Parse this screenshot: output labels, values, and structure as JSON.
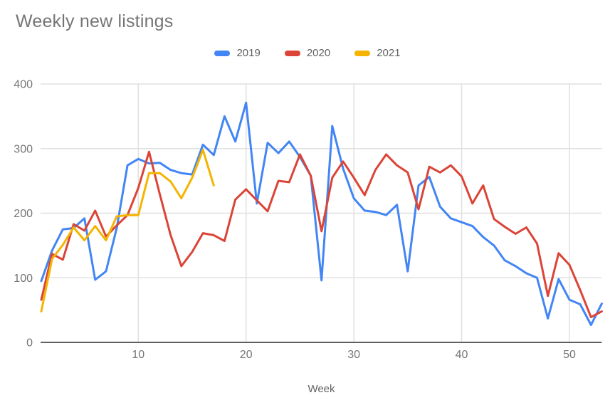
{
  "title": "Weekly new listings",
  "legend": {
    "items": [
      {
        "label": "2019",
        "color": "#4285F4"
      },
      {
        "label": "2020",
        "color": "#DB4437"
      },
      {
        "label": "2021",
        "color": "#F4B400"
      }
    ]
  },
  "axes": {
    "xlabel": "Week",
    "yticks": [
      0,
      100,
      200,
      300,
      400
    ],
    "xticks": [
      10,
      20,
      30,
      40,
      50
    ],
    "ylim": [
      0,
      400
    ],
    "xlim": [
      1,
      53
    ]
  },
  "chart_data": {
    "type": "line",
    "title": "Weekly new listings",
    "xlabel": "Week",
    "ylabel": "",
    "ylim": [
      0,
      400
    ],
    "x_weeks": [
      1,
      2,
      3,
      4,
      5,
      6,
      7,
      8,
      9,
      10,
      11,
      12,
      13,
      14,
      15,
      16,
      17,
      18,
      19,
      20,
      21,
      22,
      23,
      24,
      25,
      26,
      27,
      28,
      29,
      30,
      31,
      32,
      33,
      34,
      35,
      36,
      37,
      38,
      39,
      40,
      41,
      42,
      43,
      44,
      45,
      46,
      47,
      48,
      49,
      50,
      51,
      52,
      53
    ],
    "series": [
      {
        "name": "2019",
        "color": "#4285F4",
        "values": [
          95,
          142,
          175,
          177,
          192,
          97,
          110,
          177,
          274,
          284,
          277,
          278,
          267,
          262,
          260,
          306,
          290,
          350,
          311,
          371,
          215,
          309,
          293,
          311,
          287,
          258,
          96,
          335,
          269,
          223,
          204,
          202,
          197,
          213,
          110,
          243,
          256,
          210,
          192,
          186,
          180,
          163,
          150,
          127,
          118,
          107,
          100,
          37,
          98,
          66,
          59,
          27,
          60
        ]
      },
      {
        "name": "2020",
        "color": "#DB4437",
        "values": [
          66,
          137,
          128,
          183,
          173,
          204,
          164,
          181,
          197,
          239,
          295,
          229,
          166,
          118,
          140,
          169,
          166,
          157,
          221,
          237,
          220,
          203,
          250,
          248,
          291,
          258,
          172,
          255,
          280,
          255,
          228,
          267,
          291,
          274,
          263,
          206,
          272,
          263,
          274,
          257,
          215,
          243,
          191,
          179,
          168,
          178,
          153,
          72,
          138,
          120,
          81,
          39,
          48
        ]
      },
      {
        "name": "2021",
        "color": "#F4B400",
        "values": [
          48,
          129,
          151,
          178,
          158,
          180,
          158,
          195,
          197,
          197,
          262,
          262,
          249,
          223,
          255,
          298,
          243
        ]
      }
    ],
    "legend_position": "top",
    "grid": true,
    "gridline_color": "#E0E0E0",
    "baseline_color": "#616161",
    "tick_label_color": "#757575"
  }
}
